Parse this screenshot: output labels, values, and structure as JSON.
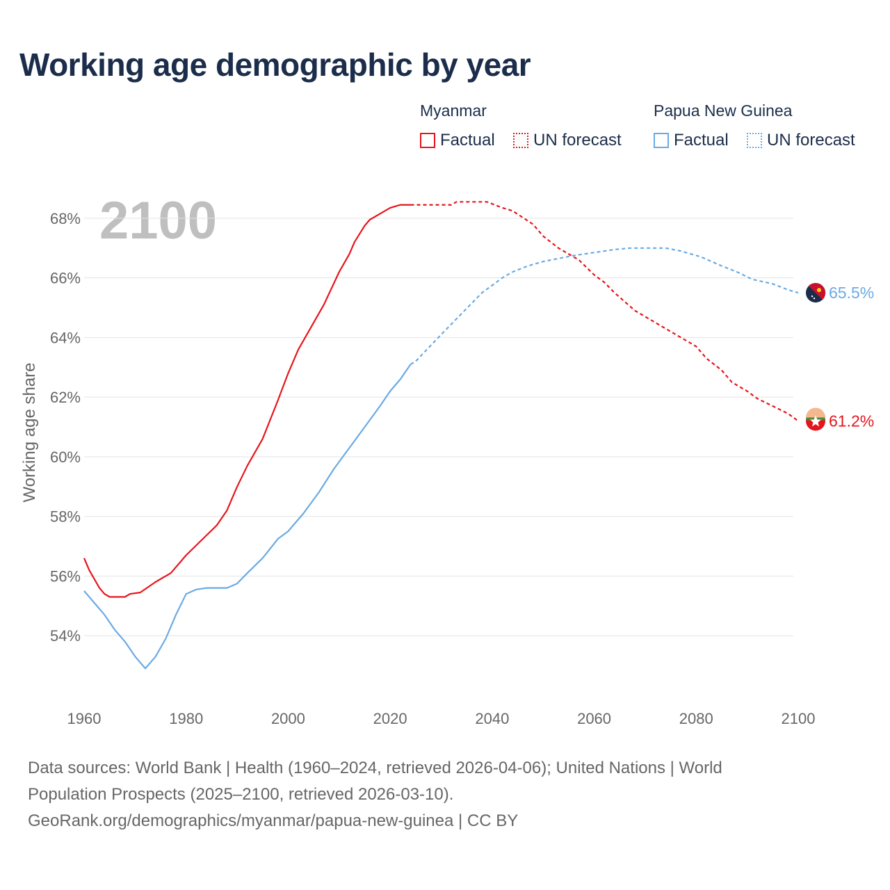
{
  "title": "Working age demographic by year",
  "legend": {
    "groups": [
      {
        "name": "Myanmar",
        "factual_label": "Factual",
        "forecast_label": "UN forecast",
        "color": "#e8141c"
      },
      {
        "name": "Papua New Guinea",
        "factual_label": "Factual",
        "forecast_label": "UN forecast",
        "color": "#6aaae4"
      }
    ]
  },
  "footer": {
    "line1": "Data sources: World Bank | Health (1960–2024, retrieved 2026-04-06); United Nations | World",
    "line2": "Population Prospects (2025–2100, retrieved 2026-03-10).",
    "line3": "GeoRank.org/demographics/myanmar/papua-new-guinea | CC BY"
  },
  "chart_data": {
    "type": "line",
    "title": "Working age demographic by year",
    "year_watermark": "2100",
    "xlabel": "",
    "ylabel": "Working age share",
    "xlim": [
      1960,
      2103
    ],
    "ylim": [
      52,
      69
    ],
    "x_ticks": [
      1960,
      1980,
      2000,
      2020,
      2040,
      2060,
      2080,
      2100
    ],
    "y_ticks": [
      54,
      56,
      58,
      60,
      62,
      64,
      66,
      68
    ],
    "y_tick_suffix": "%",
    "grid": true,
    "factual_end_year": 2024,
    "series": [
      {
        "name": "Myanmar",
        "color": "#e8141c",
        "end_label": "61.2%",
        "points": [
          [
            1960,
            56.6
          ],
          [
            1961,
            56.2
          ],
          [
            1962,
            55.9
          ],
          [
            1963,
            55.6
          ],
          [
            1964,
            55.4
          ],
          [
            1965,
            55.3
          ],
          [
            1966,
            55.3
          ],
          [
            1968,
            55.3
          ],
          [
            1969,
            55.4
          ],
          [
            1971,
            55.45
          ],
          [
            1974,
            55.8
          ],
          [
            1977,
            56.1
          ],
          [
            1980,
            56.7
          ],
          [
            1983,
            57.2
          ],
          [
            1986,
            57.7
          ],
          [
            1988,
            58.2
          ],
          [
            1990,
            59.0
          ],
          [
            1992,
            59.7
          ],
          [
            1995,
            60.6
          ],
          [
            1998,
            61.9
          ],
          [
            2000,
            62.8
          ],
          [
            2002,
            63.6
          ],
          [
            2004,
            64.2
          ],
          [
            2007,
            65.1
          ],
          [
            2010,
            66.2
          ],
          [
            2012,
            66.8
          ],
          [
            2013,
            67.2
          ],
          [
            2015,
            67.75
          ],
          [
            2016,
            67.95
          ],
          [
            2018,
            68.15
          ],
          [
            2020,
            68.35
          ],
          [
            2022,
            68.45
          ],
          [
            2024,
            68.45
          ],
          [
            2025,
            68.45
          ],
          [
            2032,
            68.45
          ],
          [
            2033,
            68.55
          ],
          [
            2039,
            68.55
          ],
          [
            2042,
            68.35
          ],
          [
            2044,
            68.25
          ],
          [
            2048,
            67.8
          ],
          [
            2050,
            67.4
          ],
          [
            2053,
            67.0
          ],
          [
            2057,
            66.6
          ],
          [
            2060,
            66.1
          ],
          [
            2062,
            65.85
          ],
          [
            2064,
            65.5
          ],
          [
            2066,
            65.2
          ],
          [
            2068,
            64.9
          ],
          [
            2072,
            64.5
          ],
          [
            2076,
            64.1
          ],
          [
            2080,
            63.7
          ],
          [
            2082,
            63.3
          ],
          [
            2085,
            62.9
          ],
          [
            2087,
            62.5
          ],
          [
            2090,
            62.2
          ],
          [
            2092,
            61.95
          ],
          [
            2095,
            61.7
          ],
          [
            2098,
            61.45
          ],
          [
            2100,
            61.2
          ]
        ]
      },
      {
        "name": "Papua New Guinea",
        "color": "#6aaae4",
        "end_label": "65.5%",
        "points": [
          [
            1960,
            55.5
          ],
          [
            1962,
            55.1
          ],
          [
            1964,
            54.7
          ],
          [
            1966,
            54.2
          ],
          [
            1968,
            53.8
          ],
          [
            1970,
            53.3
          ],
          [
            1972,
            52.9
          ],
          [
            1974,
            53.3
          ],
          [
            1976,
            53.9
          ],
          [
            1978,
            54.7
          ],
          [
            1980,
            55.4
          ],
          [
            1982,
            55.55
          ],
          [
            1984,
            55.6
          ],
          [
            1988,
            55.6
          ],
          [
            1990,
            55.75
          ],
          [
            1992,
            56.1
          ],
          [
            1995,
            56.6
          ],
          [
            1998,
            57.25
          ],
          [
            2000,
            57.5
          ],
          [
            2003,
            58.1
          ],
          [
            2006,
            58.8
          ],
          [
            2009,
            59.6
          ],
          [
            2012,
            60.3
          ],
          [
            2015,
            61.0
          ],
          [
            2018,
            61.7
          ],
          [
            2020,
            62.2
          ],
          [
            2022,
            62.6
          ],
          [
            2024,
            63.1
          ],
          [
            2025,
            63.2
          ],
          [
            2030,
            64.1
          ],
          [
            2034,
            64.8
          ],
          [
            2038,
            65.5
          ],
          [
            2042,
            66.0
          ],
          [
            2044,
            66.2
          ],
          [
            2047,
            66.4
          ],
          [
            2050,
            66.55
          ],
          [
            2053,
            66.65
          ],
          [
            2056,
            66.75
          ],
          [
            2060,
            66.85
          ],
          [
            2064,
            66.95
          ],
          [
            2067,
            67.0
          ],
          [
            2074,
            67.0
          ],
          [
            2077,
            66.9
          ],
          [
            2081,
            66.7
          ],
          [
            2085,
            66.4
          ],
          [
            2088,
            66.2
          ],
          [
            2091,
            65.95
          ],
          [
            2095,
            65.8
          ],
          [
            2098,
            65.6
          ],
          [
            2100,
            65.5
          ]
        ]
      }
    ]
  }
}
